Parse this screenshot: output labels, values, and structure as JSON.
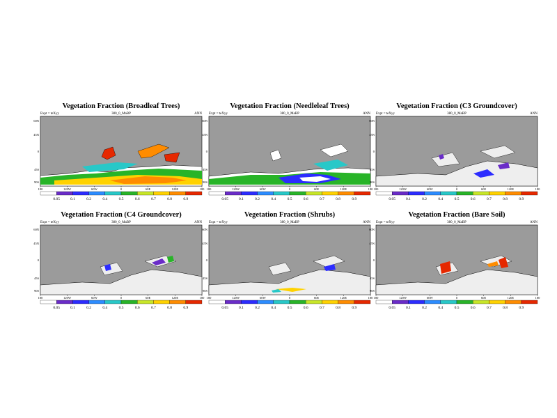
{
  "common": {
    "expt": "Expt = teXyy",
    "run": "380_0_MaBP",
    "season": "ANN",
    "lat_labels": [
      "60N",
      "45N",
      "0",
      "45S",
      "90S"
    ],
    "lon_labels": [
      "180",
      "120W",
      "60W",
      "0",
      "60E",
      "120E",
      "180"
    ]
  },
  "palette": [
    "#ffffff",
    "#6a2cc8",
    "#2c2cff",
    "#2c8cff",
    "#28c8c8",
    "#28b428",
    "#c8e628",
    "#ffd200",
    "#ff8c00",
    "#e62800"
  ],
  "panels": [
    {
      "title": "Vegetation Fraction (Broadleaf Trees)",
      "colorbar": [
        "0.05",
        "0.1",
        "0.2",
        "0.4",
        "0.5",
        "0.6",
        "0.7",
        "0.8",
        "0.9"
      ]
    },
    {
      "title": "Vegetation Fraction (Needleleaf Trees)",
      "colorbar": [
        "0.05",
        "0.1",
        "0.2",
        "0.4",
        "0.5",
        "0.6",
        "0.7",
        "0.8",
        "0.9"
      ]
    },
    {
      "title": "Vegetation Fraction (C3 Groundcover)",
      "colorbar": [
        "0.05",
        "0.1",
        "0.2",
        "0.4",
        "0.5",
        "0.6",
        "0.7",
        "0.8",
        "0.9"
      ]
    },
    {
      "title": "Vegetation Fraction (C4 Groundcover)",
      "colorbar": [
        "0.05",
        "0.1",
        "0.2",
        "0.4",
        "0.5",
        "0.6",
        "0.7",
        "0.8",
        "0.9"
      ]
    },
    {
      "title": "Vegetation Fraction (Shrubs)",
      "colorbar": [
        "0.05",
        "0.1",
        "0.2",
        "0.4",
        "0.5",
        "0.6",
        "0.7",
        "0.8",
        "0.9"
      ]
    },
    {
      "title": "Vegetation Fraction (Bare Soil)",
      "colorbar": [
        "0.05",
        "0.1",
        "0.2",
        "0.4",
        "0.5",
        "0.6",
        "0.7",
        "0.8",
        "0.9"
      ]
    }
  ]
}
